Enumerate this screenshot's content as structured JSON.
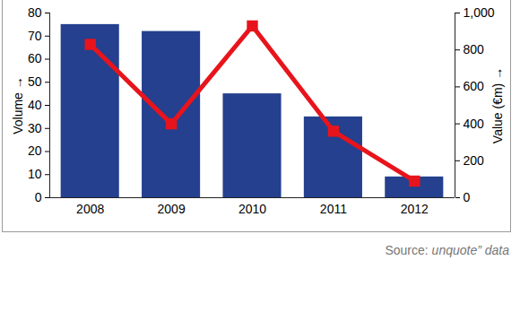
{
  "chart_data": {
    "type": "bar",
    "categories": [
      "2008",
      "2009",
      "2010",
      "2011",
      "2012"
    ],
    "series": [
      {
        "name": "Volume",
        "type": "bar",
        "color": "#24408e",
        "values": [
          75,
          72,
          45,
          35,
          9
        ]
      },
      {
        "name": "Value (€m)",
        "type": "line",
        "axis": "y2",
        "color": "#e8141c",
        "marker": "square",
        "values": [
          830,
          400,
          930,
          360,
          90
        ]
      }
    ],
    "ylim": [
      0,
      80
    ],
    "yticks": [
      0,
      10,
      20,
      30,
      40,
      50,
      60,
      70,
      80
    ],
    "y2lim": [
      0,
      1000
    ],
    "y2ticks": [
      0,
      200,
      400,
      600,
      800,
      {
        "value": 1000,
        "label": "1,000"
      }
    ],
    "caption": "Source: unquote” data"
  }
}
